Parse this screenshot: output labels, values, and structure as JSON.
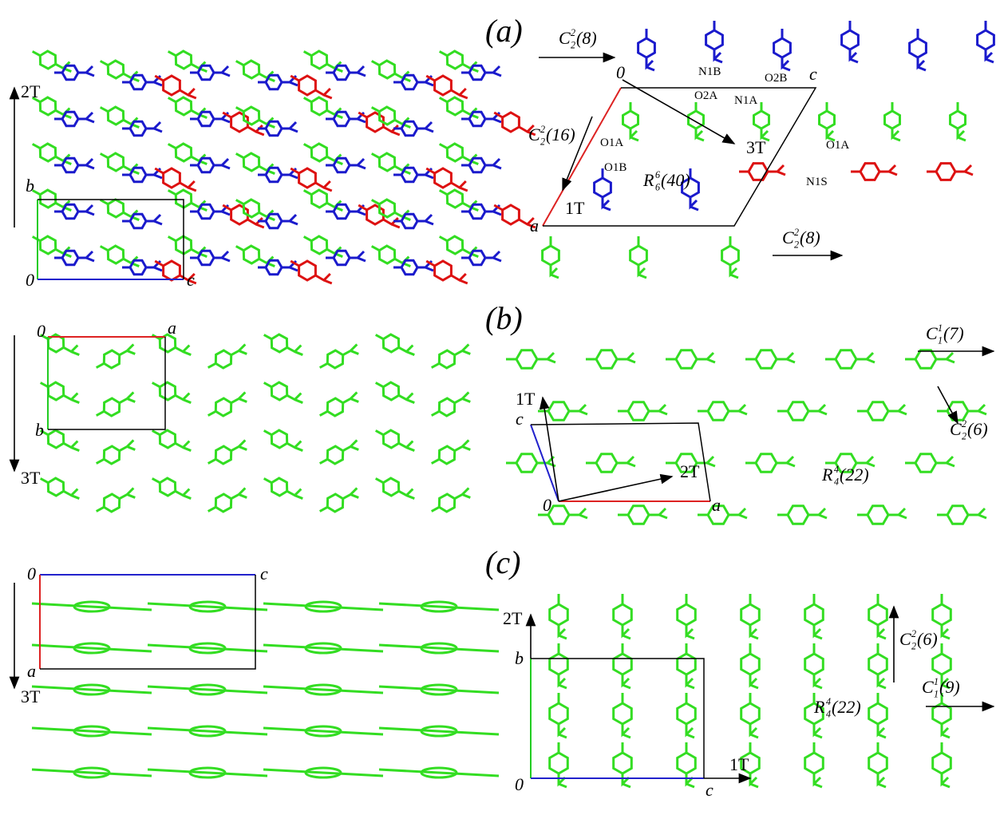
{
  "left_top": {
    "labels": [
      "2T",
      "b",
      "0",
      "c"
    ]
  },
  "left_middle": {
    "labels": [
      "0",
      "a",
      "b",
      "3T"
    ]
  },
  "left_bottom": {
    "labels": [
      "0",
      "c",
      "a",
      "3T"
    ]
  },
  "panel_a": {
    "title": "(a)",
    "labels": [
      "0",
      "c",
      "a",
      "N1B",
      "O2B",
      "O2A",
      "N1A",
      "O1A",
      "O1B",
      "1T",
      "3T",
      "O1A",
      "N1S"
    ],
    "graph_sets": [
      {
        "letter": "C",
        "sup": "2",
        "sub": "2",
        "n": "(8)"
      },
      {
        "letter": "C",
        "sup": "2",
        "sub": "2",
        "n": "(16)"
      },
      {
        "letter": "R",
        "sup": "6",
        "sub": "6",
        "n": "(40)"
      },
      {
        "letter": "C",
        "sup": "2",
        "sub": "2",
        "n": "(8)"
      }
    ]
  },
  "panel_b": {
    "title": "(b)",
    "labels": [
      "1T",
      "c",
      "2T",
      "0",
      "a"
    ],
    "graph_sets": [
      {
        "letter": "C",
        "sup": "1",
        "sub": "1",
        "n": "(7)"
      },
      {
        "letter": "C",
        "sup": "2",
        "sub": "2",
        "n": "(6)"
      },
      {
        "letter": "R",
        "sup": "4",
        "sub": "4",
        "n": "(22)"
      }
    ]
  },
  "panel_c": {
    "title": "(c)",
    "labels": [
      "2T",
      "b",
      "0",
      "c",
      "1T"
    ],
    "graph_sets": [
      {
        "letter": "C",
        "sup": "2",
        "sub": "2",
        "n": "(6)"
      },
      {
        "letter": "C",
        "sup": "1",
        "sub": "1",
        "n": "(9)"
      },
      {
        "letter": "R",
        "sup": "4",
        "sub": "4",
        "n": "(22)"
      }
    ]
  }
}
